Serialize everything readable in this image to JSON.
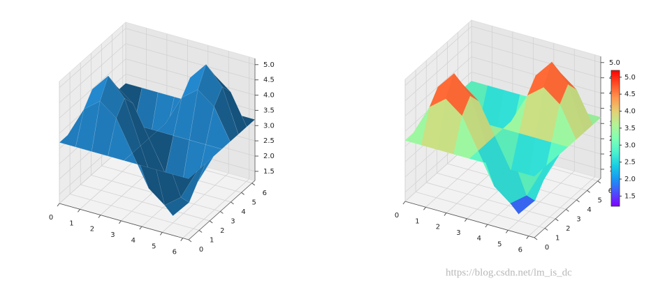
{
  "chart_data": [
    {
      "type": "surface3d",
      "color": "#1f77b4",
      "x": [
        0,
        0.79,
        1.57,
        2.36,
        3.14,
        3.93,
        4.71,
        5.5,
        6.28
      ],
      "y": [
        0,
        0.79,
        1.57,
        2.36,
        3.14,
        3.93,
        4.71,
        5.5,
        6.28
      ],
      "z": [
        [
          3.2,
          3.2,
          3.2,
          3.2,
          3.2,
          3.2,
          3.2,
          3.2,
          3.2
        ],
        [
          3.2,
          4.2,
          4.61,
          4.2,
          3.2,
          2.2,
          1.79,
          2.2,
          3.2
        ],
        [
          3.2,
          4.61,
          5.2,
          4.61,
          3.2,
          1.79,
          1.2,
          1.79,
          3.2
        ],
        [
          3.2,
          4.2,
          4.61,
          4.2,
          3.2,
          2.2,
          1.79,
          2.2,
          3.2
        ],
        [
          3.2,
          3.2,
          3.2,
          3.2,
          3.2,
          3.2,
          3.2,
          3.2,
          3.2
        ],
        [
          3.2,
          2.2,
          1.79,
          2.2,
          3.2,
          4.2,
          4.61,
          4.2,
          3.2
        ],
        [
          3.2,
          1.79,
          1.2,
          1.79,
          3.2,
          4.61,
          5.2,
          4.61,
          3.2
        ],
        [
          3.2,
          2.2,
          1.79,
          2.2,
          3.2,
          4.2,
          4.61,
          4.2,
          3.2
        ],
        [
          3.2,
          3.2,
          3.2,
          3.2,
          3.2,
          3.2,
          3.2,
          3.2,
          3.2
        ]
      ],
      "xlim": [
        0,
        6.28
      ],
      "ylim": [
        0,
        6.28
      ],
      "zlim": [
        1.2,
        5.2
      ],
      "xticks": [
        0,
        1,
        2,
        3,
        4,
        5,
        6
      ],
      "yticks": [
        0,
        1,
        2,
        3,
        4,
        5,
        6
      ],
      "zticks": [
        {
          "value": 1.5,
          "label": "1.5"
        },
        {
          "value": 2,
          "label": "2.0"
        },
        {
          "value": 2.5,
          "label": "2.5"
        },
        {
          "value": 3,
          "label": "3.0"
        },
        {
          "value": 3.5,
          "label": "3.5"
        },
        {
          "value": 4,
          "label": "4.0"
        },
        {
          "value": 4.5,
          "label": "4.5"
        },
        {
          "value": 5,
          "label": "5.0"
        }
      ],
      "grid": true
    },
    {
      "type": "surface3d",
      "cmap": "rainbow",
      "x": [
        0,
        0.79,
        1.57,
        2.36,
        3.14,
        3.93,
        4.71,
        5.5,
        6.28
      ],
      "y": [
        0,
        0.79,
        1.57,
        2.36,
        3.14,
        3.93,
        4.71,
        5.5,
        6.28
      ],
      "z": [
        [
          3.2,
          3.2,
          3.2,
          3.2,
          3.2,
          3.2,
          3.2,
          3.2,
          3.2
        ],
        [
          3.2,
          4.2,
          4.61,
          4.2,
          3.2,
          2.2,
          1.79,
          2.2,
          3.2
        ],
        [
          3.2,
          4.61,
          5.2,
          4.61,
          3.2,
          1.79,
          1.2,
          1.79,
          3.2
        ],
        [
          3.2,
          4.2,
          4.61,
          4.2,
          3.2,
          2.2,
          1.79,
          2.2,
          3.2
        ],
        [
          3.2,
          3.2,
          3.2,
          3.2,
          3.2,
          3.2,
          3.2,
          3.2,
          3.2
        ],
        [
          3.2,
          2.2,
          1.79,
          2.2,
          3.2,
          4.2,
          4.61,
          4.2,
          3.2
        ],
        [
          3.2,
          1.79,
          1.2,
          1.79,
          3.2,
          4.61,
          5.2,
          4.61,
          3.2
        ],
        [
          3.2,
          2.2,
          1.79,
          2.2,
          3.2,
          4.2,
          4.61,
          4.2,
          3.2
        ],
        [
          3.2,
          3.2,
          3.2,
          3.2,
          3.2,
          3.2,
          3.2,
          3.2,
          3.2
        ]
      ],
      "xlim": [
        0,
        6.28
      ],
      "ylim": [
        0,
        6.28
      ],
      "zlim": [
        1.2,
        5.2
      ],
      "xticks": [
        0,
        1,
        2,
        3,
        4,
        5,
        6
      ],
      "yticks": [
        0,
        1,
        2,
        3,
        4,
        5,
        6
      ],
      "zticks": [
        {
          "value": 1.5,
          "label": "1.5"
        },
        {
          "value": 2,
          "label": "2.0"
        },
        {
          "value": 2.5,
          "label": "2.5"
        },
        {
          "value": 3,
          "label": "3.0"
        },
        {
          "value": 3.5,
          "label": "3.5"
        },
        {
          "value": 4,
          "label": "4.0"
        },
        {
          "value": 4.5,
          "label": "4.5"
        },
        {
          "value": 5,
          "label": "5.0"
        }
      ],
      "clim": [
        1.2,
        5.2
      ],
      "cticks": [
        {
          "value": 1.5,
          "label": "1.5"
        },
        {
          "value": 2,
          "label": "2.0"
        },
        {
          "value": 2.5,
          "label": "2.5"
        },
        {
          "value": 3,
          "label": "3.0"
        },
        {
          "value": 3.5,
          "label": "3.5"
        },
        {
          "value": 4,
          "label": "4.0"
        },
        {
          "value": 4.5,
          "label": "4.5"
        },
        {
          "value": 5,
          "label": "5.0"
        }
      ],
      "grid": true
    }
  ],
  "watermark": "https://blog.csdn.net/lm_is_dc"
}
